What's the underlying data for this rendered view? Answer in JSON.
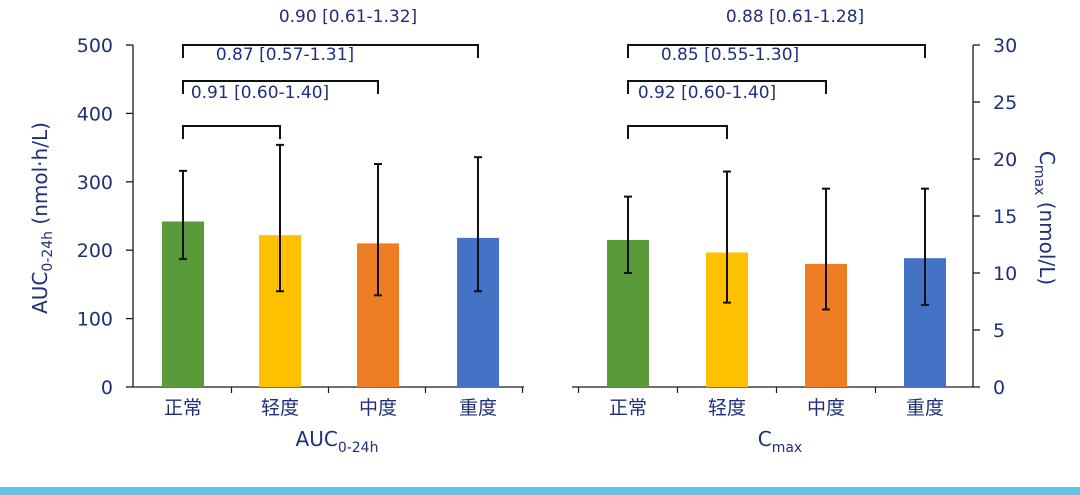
{
  "colors": {
    "text": "#1f2f7a",
    "axis": "#1a1a1a",
    "green": "#5b9a3a",
    "yellow": "#ffc000",
    "orange": "#ee7d23",
    "blue": "#4472c4",
    "bottom_bar": "#5fc3e8"
  },
  "chart_data": [
    {
      "type": "bar",
      "categories": [
        "正常",
        "轻度",
        "中度",
        "重度"
      ],
      "values": [
        242,
        222,
        210,
        218
      ],
      "error_low": [
        187,
        140,
        134,
        140
      ],
      "error_high": [
        316,
        354,
        326,
        336
      ],
      "xlabel": {
        "main": "AUC",
        "sub": "0-24h"
      },
      "ylabel": {
        "main": "AUC",
        "sub": "0-24h",
        "rest": " (nmol·h/L)"
      },
      "ylim": [
        0,
        500
      ],
      "yticks": [
        0,
        100,
        200,
        300,
        400,
        500
      ],
      "y_axis_side": "left",
      "grid": false,
      "bar_colors": [
        "#5b9a3a",
        "#ffc000",
        "#ee7d23",
        "#4472c4"
      ],
      "comparisons": [
        {
          "from": 0,
          "to": 1,
          "label": "0.91 [0.60-1.40]"
        },
        {
          "from": 0,
          "to": 2,
          "label": "0.87 [0.57-1.31]"
        },
        {
          "from": 0,
          "to": 3,
          "label": "0.90 [0.61-1.32]"
        }
      ]
    },
    {
      "type": "bar",
      "categories": [
        "正常",
        "轻度",
        "中度",
        "重度"
      ],
      "values": [
        12.9,
        11.8,
        10.8,
        11.3
      ],
      "error_low": [
        10.0,
        7.4,
        6.8,
        7.2
      ],
      "error_high": [
        16.7,
        18.9,
        17.4,
        17.4
      ],
      "xlabel": {
        "main": "C",
        "sub": "max"
      },
      "ylabel": {
        "main": "C",
        "sub": "max",
        "rest": " (nmol/L)"
      },
      "ylim": [
        0,
        30
      ],
      "yticks": [
        0,
        5,
        10,
        15,
        20,
        25,
        30
      ],
      "y_axis_side": "right",
      "grid": false,
      "bar_colors": [
        "#5b9a3a",
        "#ffc000",
        "#ee7d23",
        "#4472c4"
      ],
      "comparisons": [
        {
          "from": 0,
          "to": 1,
          "label": "0.92 [0.60-1.40]"
        },
        {
          "from": 0,
          "to": 2,
          "label": "0.85 [0.55-1.30]"
        },
        {
          "from": 0,
          "to": 3,
          "label": "0.88 [0.61-1.28]"
        }
      ]
    }
  ]
}
